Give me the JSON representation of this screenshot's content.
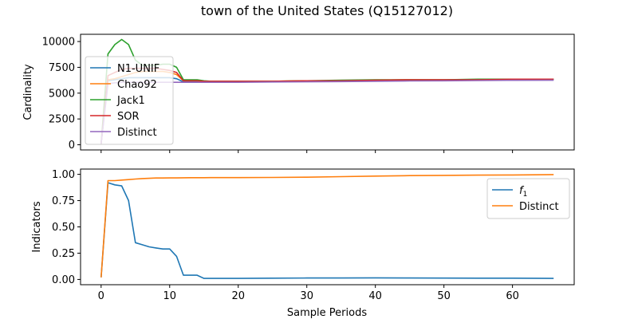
{
  "figure": {
    "title": "town of the United States (Q15127012)"
  },
  "chart_data": [
    {
      "type": "line",
      "ylabel": "Cardinality",
      "xlabel": "",
      "xlim": [
        -3,
        69
      ],
      "ylim": [
        -500,
        10700
      ],
      "xticks": [
        0,
        10,
        20,
        30,
        40,
        50,
        60
      ],
      "xtick_labels": [
        "",
        "",
        "",
        "",
        "",
        "",
        ""
      ],
      "yticks": [
        0,
        2500,
        5000,
        7500,
        10000
      ],
      "ytick_labels": [
        "0",
        "2500",
        "5000",
        "7500",
        "10000"
      ],
      "legend_position": "upper-left",
      "grid": false,
      "x": [
        0,
        1,
        2,
        3,
        4,
        5,
        6,
        7,
        8,
        9,
        10,
        11,
        12,
        13,
        14,
        15,
        16,
        20,
        25,
        30,
        35,
        40,
        45,
        50,
        55,
        60,
        66
      ],
      "series": [
        {
          "name": "N1-UNIF",
          "color": "#1f77b4",
          "values": [
            100,
            6200,
            6300,
            6400,
            6500,
            6500,
            6500,
            6500,
            6500,
            6500,
            6500,
            6400,
            6100,
            6100,
            6100,
            6100,
            6100,
            6100,
            6100,
            6150,
            6150,
            6200,
            6250,
            6250,
            6250,
            6300,
            6300
          ]
        },
        {
          "name": "Chao92",
          "color": "#ff7f0e",
          "values": [
            100,
            6300,
            6400,
            6600,
            6800,
            7000,
            7100,
            7100,
            7100,
            7100,
            7000,
            6800,
            6200,
            6200,
            6200,
            6150,
            6150,
            6150,
            6150,
            6200,
            6200,
            6250,
            6300,
            6300,
            6300,
            6350,
            6350
          ]
        },
        {
          "name": "Jack1",
          "color": "#2ca02c",
          "values": [
            100,
            8800,
            9700,
            10200,
            9700,
            8200,
            7700,
            7700,
            7700,
            7800,
            7800,
            7500,
            6300,
            6300,
            6300,
            6200,
            6150,
            6150,
            6150,
            6200,
            6250,
            6300,
            6300,
            6300,
            6350,
            6350,
            6350
          ]
        },
        {
          "name": "SOR",
          "color": "#d62728",
          "values": [
            100,
            6700,
            7000,
            7300,
            7400,
            7400,
            7400,
            7400,
            7400,
            7300,
            7200,
            7000,
            6200,
            6200,
            6200,
            6150,
            6150,
            6150,
            6150,
            6200,
            6200,
            6250,
            6300,
            6300,
            6300,
            6350,
            6350
          ]
        },
        {
          "name": "Distinct",
          "color": "#9467bd",
          "values": [
            100,
            5900,
            6000,
            6050,
            6050,
            6050,
            6050,
            6050,
            6050,
            6050,
            6050,
            6050,
            6050,
            6050,
            6050,
            6050,
            6050,
            6050,
            6080,
            6100,
            6120,
            6150,
            6180,
            6200,
            6220,
            6240,
            6250
          ]
        }
      ]
    },
    {
      "type": "line",
      "ylabel": "Indicators",
      "xlabel": "Sample Periods",
      "xlim": [
        -3,
        69
      ],
      "ylim": [
        -0.05,
        1.05
      ],
      "xticks": [
        0,
        10,
        20,
        30,
        40,
        50,
        60
      ],
      "xtick_labels": [
        "0",
        "10",
        "20",
        "30",
        "40",
        "50",
        "60"
      ],
      "yticks": [
        0.0,
        0.25,
        0.5,
        0.75,
        1.0
      ],
      "ytick_labels": [
        "0.00",
        "0.25",
        "0.50",
        "0.75",
        "1.00"
      ],
      "legend_position": "upper-right",
      "grid": false,
      "series": [
        {
          "name": "f1",
          "color": "#1f77b4",
          "x": [
            0,
            1,
            2,
            3,
            4,
            5,
            6,
            7,
            8,
            9,
            10,
            11,
            12,
            13,
            14,
            15,
            16,
            20,
            25,
            30,
            35,
            40,
            45,
            50,
            55,
            60,
            66
          ],
          "values": [
            0.02,
            0.92,
            0.9,
            0.89,
            0.75,
            0.35,
            0.33,
            0.31,
            0.3,
            0.29,
            0.29,
            0.22,
            0.04,
            0.04,
            0.04,
            0.01,
            0.01,
            0.01,
            0.012,
            0.014,
            0.014,
            0.015,
            0.014,
            0.013,
            0.012,
            0.012,
            0.01
          ]
        },
        {
          "name": "Distinct",
          "color": "#ff7f0e",
          "x": [
            0,
            1,
            2,
            3,
            4,
            5,
            6,
            7,
            8,
            9,
            10,
            11,
            12,
            13,
            14,
            15,
            16,
            20,
            25,
            30,
            35,
            40,
            45,
            50,
            55,
            60,
            66
          ],
          "values": [
            0.02,
            0.94,
            0.94,
            0.945,
            0.95,
            0.955,
            0.96,
            0.962,
            0.965,
            0.965,
            0.966,
            0.966,
            0.967,
            0.968,
            0.968,
            0.968,
            0.969,
            0.969,
            0.97,
            0.973,
            0.978,
            0.983,
            0.988,
            0.99,
            0.992,
            0.994,
            0.998
          ]
        }
      ]
    }
  ]
}
